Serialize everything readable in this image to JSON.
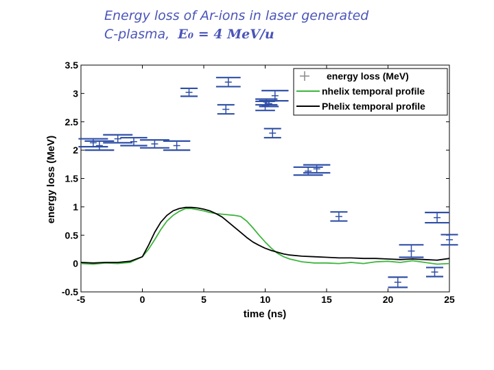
{
  "slide": {
    "title_line1": "Energy loss of Ar-ions in laser generated",
    "title_line2_prefix": "C-plasma,",
    "title_line2_formula": "E₀ = 4 MeV/u"
  },
  "colors": {
    "title": "#4a55b8",
    "energy_loss_marker": "#2f4fa6",
    "nhelix": "#3cb43c",
    "phelix": "#000000"
  },
  "chart_data": {
    "type": "scatter",
    "title": "",
    "xlabel": "time (ns)",
    "ylabel": "energy loss (MeV)",
    "xlim": [
      -5,
      25
    ],
    "ylim": [
      -0.5,
      3.5
    ],
    "xticks": [
      -5,
      0,
      5,
      10,
      15,
      20,
      25
    ],
    "xtick_labels": [
      "-5",
      "0",
      "5",
      "10",
      "15",
      "20",
      "25"
    ],
    "yticks": [
      -0.5,
      0,
      0.5,
      1,
      1.5,
      2,
      2.5,
      3,
      3.5
    ],
    "ytick_labels": [
      "-0.5",
      "0",
      "0.5",
      "1",
      "1.5",
      "2",
      "2.5",
      "3",
      "3.5"
    ],
    "legend_position": "top-right",
    "legend": [
      "energy loss (MeV)",
      "nhelix temporal profile",
      "Phelix temporal profile"
    ],
    "energy_loss_points": [
      {
        "x": -4.0,
        "y": 2.13,
        "err": 0.07,
        "xerr": 1.2
      },
      {
        "x": -3.5,
        "y": 2.08,
        "err": 0.08,
        "xerr": 1.2
      },
      {
        "x": -2.0,
        "y": 2.2,
        "err": 0.07,
        "xerr": 1.2
      },
      {
        "x": -0.7,
        "y": 2.15,
        "err": 0.07,
        "xerr": 1.1
      },
      {
        "x": 1.0,
        "y": 2.11,
        "err": 0.07,
        "xerr": 1.2
      },
      {
        "x": 2.8,
        "y": 2.08,
        "err": 0.08,
        "xerr": 1.1
      },
      {
        "x": 3.8,
        "y": 3.02,
        "err": 0.07,
        "xerr": 0.7
      },
      {
        "x": 7.0,
        "y": 3.2,
        "err": 0.08,
        "xerr": 1.0
      },
      {
        "x": 6.8,
        "y": 2.72,
        "err": 0.08,
        "xerr": 0.7
      },
      {
        "x": 10.1,
        "y": 2.85,
        "err": 0.05,
        "xerr": 0.9
      },
      {
        "x": 10.0,
        "y": 2.78,
        "err": 0.08,
        "xerr": 0.8
      },
      {
        "x": 10.3,
        "y": 2.82,
        "err": 0.05,
        "xerr": 0.8
      },
      {
        "x": 10.8,
        "y": 2.96,
        "err": 0.09,
        "xerr": 1.1
      },
      {
        "x": 10.6,
        "y": 2.3,
        "err": 0.08,
        "xerr": 0.7
      },
      {
        "x": 13.5,
        "y": 1.63,
        "err": 0.07,
        "xerr": 1.2
      },
      {
        "x": 14.2,
        "y": 1.67,
        "err": 0.07,
        "xerr": 1.1
      },
      {
        "x": 16.0,
        "y": 0.83,
        "err": 0.08,
        "xerr": 0.7
      },
      {
        "x": 20.8,
        "y": -0.33,
        "err": 0.09,
        "xerr": 0.8
      },
      {
        "x": 21.9,
        "y": 0.22,
        "err": 0.11,
        "xerr": 1.0
      },
      {
        "x": 24.0,
        "y": 0.81,
        "err": 0.09,
        "xerr": 1.0
      },
      {
        "x": 23.8,
        "y": -0.15,
        "err": 0.08,
        "xerr": 0.7
      },
      {
        "x": 25.0,
        "y": 0.42,
        "err": 0.09,
        "xerr": 0.7
      }
    ],
    "series": [
      {
        "name": "nhelix temporal profile",
        "x": [
          -5,
          -4,
          -3,
          -2,
          -1,
          0,
          0.5,
          1,
          1.5,
          2,
          2.5,
          3,
          3.5,
          4,
          4.5,
          5,
          5.5,
          6,
          6.5,
          7,
          7.5,
          8,
          8.5,
          9,
          9.5,
          10,
          10.5,
          11,
          11.5,
          12,
          13,
          14,
          15,
          16,
          17,
          18,
          19,
          20,
          21,
          22,
          23,
          24,
          25
        ],
        "y": [
          0.0,
          -0.01,
          0.01,
          0.0,
          0.02,
          0.12,
          0.25,
          0.42,
          0.6,
          0.75,
          0.85,
          0.92,
          0.97,
          0.97,
          0.95,
          0.93,
          0.9,
          0.88,
          0.87,
          0.86,
          0.85,
          0.83,
          0.75,
          0.63,
          0.5,
          0.38,
          0.27,
          0.18,
          0.12,
          0.08,
          0.03,
          0.01,
          0.01,
          0.0,
          0.02,
          0.0,
          0.03,
          0.04,
          0.02,
          0.05,
          0.02,
          -0.01,
          0.0
        ]
      },
      {
        "name": "Phelix temporal profile",
        "x": [
          -5,
          -4,
          -3,
          -2,
          -1,
          0,
          0.5,
          1,
          1.5,
          2,
          2.5,
          3,
          3.5,
          4,
          4.5,
          5,
          5.5,
          6,
          6.5,
          7,
          7.5,
          8,
          8.5,
          9,
          9.5,
          10,
          10.5,
          11,
          11.5,
          12,
          13,
          14,
          15,
          16,
          17,
          18,
          19,
          20,
          21,
          22,
          23,
          24,
          25
        ],
        "y": [
          0.02,
          0.01,
          0.02,
          0.02,
          0.04,
          0.12,
          0.32,
          0.55,
          0.73,
          0.85,
          0.93,
          0.97,
          0.99,
          0.99,
          0.98,
          0.96,
          0.93,
          0.88,
          0.82,
          0.73,
          0.64,
          0.55,
          0.46,
          0.38,
          0.32,
          0.27,
          0.23,
          0.2,
          0.17,
          0.15,
          0.13,
          0.12,
          0.11,
          0.1,
          0.1,
          0.09,
          0.09,
          0.08,
          0.07,
          0.08,
          0.07,
          0.06,
          0.09
        ]
      }
    ]
  }
}
